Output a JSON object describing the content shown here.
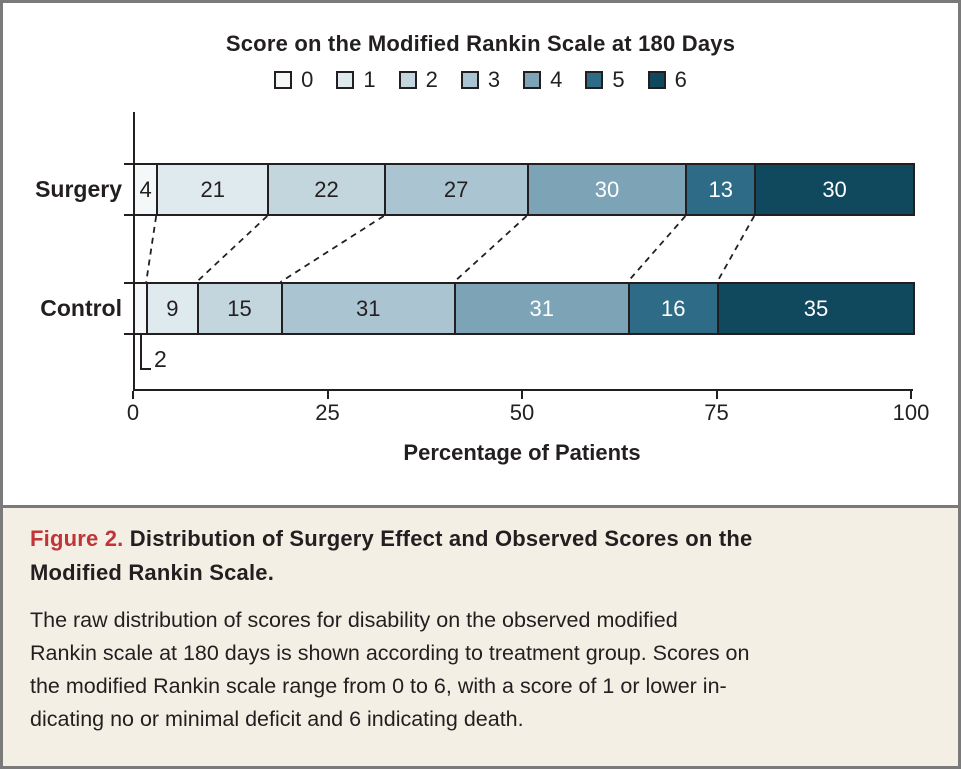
{
  "chart_data": {
    "type": "bar",
    "orientation": "horizontal_stacked",
    "title": "Score on the Modified Rankin Scale at 180 Days",
    "xlabel": "Percentage of Patients",
    "xlim": [
      0,
      100
    ],
    "x_ticks": [
      "0",
      "25",
      "50",
      "75",
      "100"
    ],
    "legend_position": "top-center",
    "grid": false,
    "score_labels": [
      "0",
      "1",
      "2",
      "3",
      "4",
      "5",
      "6"
    ],
    "score_colors": [
      {
        "score": "0",
        "fill": "#f4f8f9",
        "text": "#231f20"
      },
      {
        "score": "1",
        "fill": "#dfeaee",
        "text": "#231f20"
      },
      {
        "score": "2",
        "fill": "#c3d5dd",
        "text": "#231f20"
      },
      {
        "score": "3",
        "fill": "#abc4d1",
        "text": "#231f20"
      },
      {
        "score": "4",
        "fill": "#7ca3b6",
        "text": "#ffffff"
      },
      {
        "score": "5",
        "fill": "#2e6b86",
        "text": "#ffffff"
      },
      {
        "score": "6",
        "fill": "#10485e",
        "text": "#ffffff"
      }
    ],
    "series": [
      {
        "name": "Surgery",
        "counts": [
          4,
          21,
          22,
          27,
          30,
          13,
          30
        ],
        "inline_labels": [
          true,
          true,
          true,
          true,
          true,
          true,
          true
        ]
      },
      {
        "name": "Control",
        "counts": [
          2,
          9,
          15,
          31,
          31,
          16,
          35
        ],
        "inline_labels": [
          false,
          true,
          true,
          true,
          true,
          true,
          true
        ]
      }
    ],
    "callout": {
      "group": "Control",
      "score": "0",
      "value": "2"
    },
    "connectors": "dashed lines join cumulative score boundaries between the two bars",
    "note": "segment widths are percentages of each group total; inline numbers are patient counts"
  },
  "caption": {
    "label": "Figure 2.",
    "title": " Distribution of Surgery Effect and Observed Scores on the\nModified Rankin Scale.",
    "body": "The raw distribution of scores for disability on the observed modified\nRankin scale at 180 days is shown according to treatment group. Scores on\nthe modified Rankin scale range from 0 to 6, with a score of 1 or lower in-\ndicating no or minimal deficit and 6 indicating death."
  },
  "colors": {
    "ink": "#231f20",
    "frame_border": "#7a7a7a",
    "caption_background": "#f3efe4",
    "figure_label_red": "#c23439",
    "chart_background": "#ffffff"
  }
}
